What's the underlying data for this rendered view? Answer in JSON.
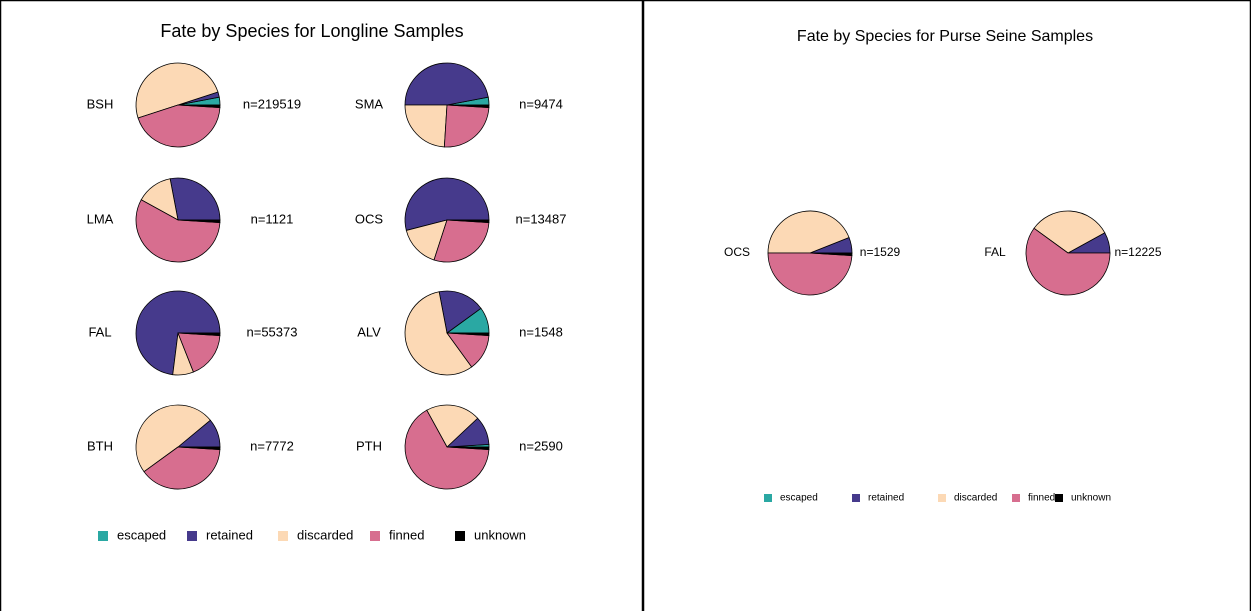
{
  "chart_data": [
    {
      "type": "pie",
      "title": "Fate by Species for Longline Samples",
      "series_names": [
        "escaped",
        "retained",
        "discarded",
        "finned",
        "unknown"
      ],
      "colors": [
        "#2aa8a3",
        "#463a8c",
        "#fcd9b5",
        "#d76e8f",
        "#000000"
      ],
      "pies": [
        {
          "name": "BSH",
          "n_label": "n=219519",
          "values": [
            3,
            2,
            50,
            44,
            1
          ]
        },
        {
          "name": "SMA",
          "n_label": "n=9474",
          "values": [
            3,
            47,
            24,
            25,
            1
          ]
        },
        {
          "name": "LMA",
          "n_label": "n=1121",
          "values": [
            0,
            28,
            14,
            57,
            1
          ]
        },
        {
          "name": "OCS",
          "n_label": "n=13487",
          "values": [
            0,
            54,
            16,
            29,
            1
          ]
        },
        {
          "name": "FAL",
          "n_label": "n=55373",
          "values": [
            0,
            73,
            8,
            18,
            1
          ]
        },
        {
          "name": "ALV",
          "n_label": "n=1548",
          "values": [
            10,
            18,
            57,
            14,
            1
          ]
        },
        {
          "name": "BTH",
          "n_label": "n=7772",
          "values": [
            0,
            11,
            49,
            39,
            1
          ]
        },
        {
          "name": "PTH",
          "n_label": "n=2590",
          "values": [
            1,
            11,
            21,
            66,
            1
          ]
        }
      ]
    },
    {
      "type": "pie",
      "title": "Fate by Species for Purse Seine Samples",
      "series_names": [
        "escaped",
        "retained",
        "discarded",
        "finned",
        "unknown"
      ],
      "colors": [
        "#2aa8a3",
        "#463a8c",
        "#fcd9b5",
        "#d76e8f",
        "#000000"
      ],
      "pies": [
        {
          "name": "OCS",
          "n_label": "n=1529",
          "values": [
            0,
            6,
            44,
            49,
            1
          ]
        },
        {
          "name": "FAL",
          "n_label": "n=12225",
          "values": [
            0,
            8,
            32,
            60,
            0
          ]
        }
      ]
    }
  ]
}
